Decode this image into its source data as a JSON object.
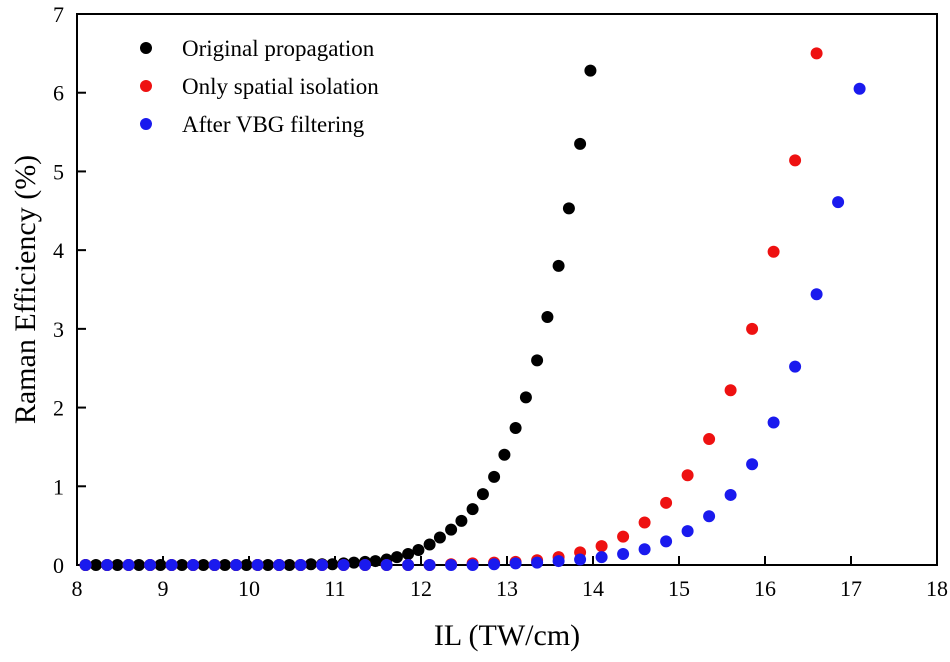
{
  "chart_data": {
    "type": "scatter",
    "xlabel": "IL (TW/cm)",
    "ylabel": "Raman Efficiency (%)",
    "xlim": [
      8,
      18
    ],
    "ylim": [
      0,
      7
    ],
    "xticks": [
      "8",
      "9",
      "10",
      "11",
      "12",
      "13",
      "14",
      "15",
      "16",
      "17",
      "18"
    ],
    "yticks": [
      "0",
      "1",
      "2",
      "3",
      "4",
      "5",
      "6",
      "7"
    ],
    "legend_position": "top-left",
    "grid": false,
    "series": [
      {
        "name": "Original propagation",
        "color": "#000000",
        "points": [
          [
            8.1,
            0
          ],
          [
            8.22,
            0
          ],
          [
            8.35,
            0
          ],
          [
            8.47,
            0
          ],
          [
            8.6,
            0
          ],
          [
            8.72,
            0
          ],
          [
            8.85,
            0
          ],
          [
            8.97,
            0
          ],
          [
            9.1,
            0
          ],
          [
            9.22,
            0
          ],
          [
            9.35,
            0
          ],
          [
            9.47,
            0
          ],
          [
            9.6,
            0
          ],
          [
            9.72,
            0
          ],
          [
            9.85,
            0
          ],
          [
            9.97,
            0
          ],
          [
            10.1,
            0
          ],
          [
            10.22,
            0
          ],
          [
            10.35,
            0
          ],
          [
            10.47,
            0
          ],
          [
            10.6,
            0
          ],
          [
            10.72,
            0.01
          ],
          [
            10.85,
            0.01
          ],
          [
            10.97,
            0.01
          ],
          [
            11.1,
            0.02
          ],
          [
            11.22,
            0.03
          ],
          [
            11.35,
            0.04
          ],
          [
            11.47,
            0.05
          ],
          [
            11.6,
            0.07
          ],
          [
            11.72,
            0.1
          ],
          [
            11.85,
            0.14
          ],
          [
            11.97,
            0.19
          ],
          [
            12.1,
            0.26
          ],
          [
            12.22,
            0.35
          ],
          [
            12.35,
            0.45
          ],
          [
            12.47,
            0.56
          ],
          [
            12.6,
            0.71
          ],
          [
            12.72,
            0.9
          ],
          [
            12.85,
            1.12
          ],
          [
            12.97,
            1.4
          ],
          [
            13.1,
            1.74
          ],
          [
            13.22,
            2.13
          ],
          [
            13.35,
            2.6
          ],
          [
            13.47,
            3.15
          ],
          [
            13.6,
            3.8
          ],
          [
            13.72,
            4.53
          ],
          [
            13.85,
            5.35
          ],
          [
            13.97,
            6.28
          ]
        ]
      },
      {
        "name": "Only spatial isolation",
        "color": "#ee1111",
        "points": [
          [
            8.1,
            0
          ],
          [
            8.35,
            0
          ],
          [
            8.6,
            0
          ],
          [
            8.85,
            0
          ],
          [
            9.1,
            0
          ],
          [
            9.35,
            0
          ],
          [
            9.6,
            0
          ],
          [
            9.85,
            0
          ],
          [
            10.1,
            0
          ],
          [
            10.35,
            0
          ],
          [
            10.6,
            0
          ],
          [
            10.85,
            0
          ],
          [
            11.1,
            0
          ],
          [
            11.35,
            0
          ],
          [
            11.6,
            0
          ],
          [
            11.85,
            0
          ],
          [
            12.1,
            0
          ],
          [
            12.35,
            0.01
          ],
          [
            12.6,
            0.02
          ],
          [
            12.85,
            0.03
          ],
          [
            13.1,
            0.04
          ],
          [
            13.35,
            0.06
          ],
          [
            13.6,
            0.1
          ],
          [
            13.85,
            0.16
          ],
          [
            14.1,
            0.24
          ],
          [
            14.35,
            0.36
          ],
          [
            14.6,
            0.54
          ],
          [
            14.85,
            0.79
          ],
          [
            15.1,
            1.14
          ],
          [
            15.35,
            1.6
          ],
          [
            15.6,
            2.22
          ],
          [
            15.85,
            3.0
          ],
          [
            16.1,
            3.98
          ],
          [
            16.35,
            5.14
          ],
          [
            16.6,
            6.5
          ]
        ]
      },
      {
        "name": "After VBG filtering",
        "color": "#1a1aee",
        "points": [
          [
            8.1,
            0
          ],
          [
            8.35,
            0
          ],
          [
            8.6,
            0
          ],
          [
            8.85,
            0
          ],
          [
            9.1,
            0
          ],
          [
            9.35,
            0
          ],
          [
            9.6,
            0
          ],
          [
            9.85,
            0
          ],
          [
            10.1,
            0
          ],
          [
            10.35,
            0
          ],
          [
            10.6,
            0
          ],
          [
            10.85,
            0
          ],
          [
            11.1,
            0
          ],
          [
            11.35,
            0
          ],
          [
            11.6,
            0
          ],
          [
            11.85,
            0
          ],
          [
            12.1,
            0
          ],
          [
            12.35,
            0
          ],
          [
            12.6,
            0
          ],
          [
            12.85,
            0.01
          ],
          [
            13.1,
            0.02
          ],
          [
            13.35,
            0.03
          ],
          [
            13.6,
            0.05
          ],
          [
            13.85,
            0.07
          ],
          [
            14.1,
            0.1
          ],
          [
            14.35,
            0.14
          ],
          [
            14.6,
            0.2
          ],
          [
            14.85,
            0.3
          ],
          [
            15.1,
            0.43
          ],
          [
            15.35,
            0.62
          ],
          [
            15.6,
            0.89
          ],
          [
            15.85,
            1.28
          ],
          [
            16.1,
            1.81
          ],
          [
            16.35,
            2.52
          ],
          [
            16.6,
            3.44
          ],
          [
            16.85,
            4.61
          ],
          [
            17.1,
            6.05
          ]
        ]
      }
    ]
  }
}
